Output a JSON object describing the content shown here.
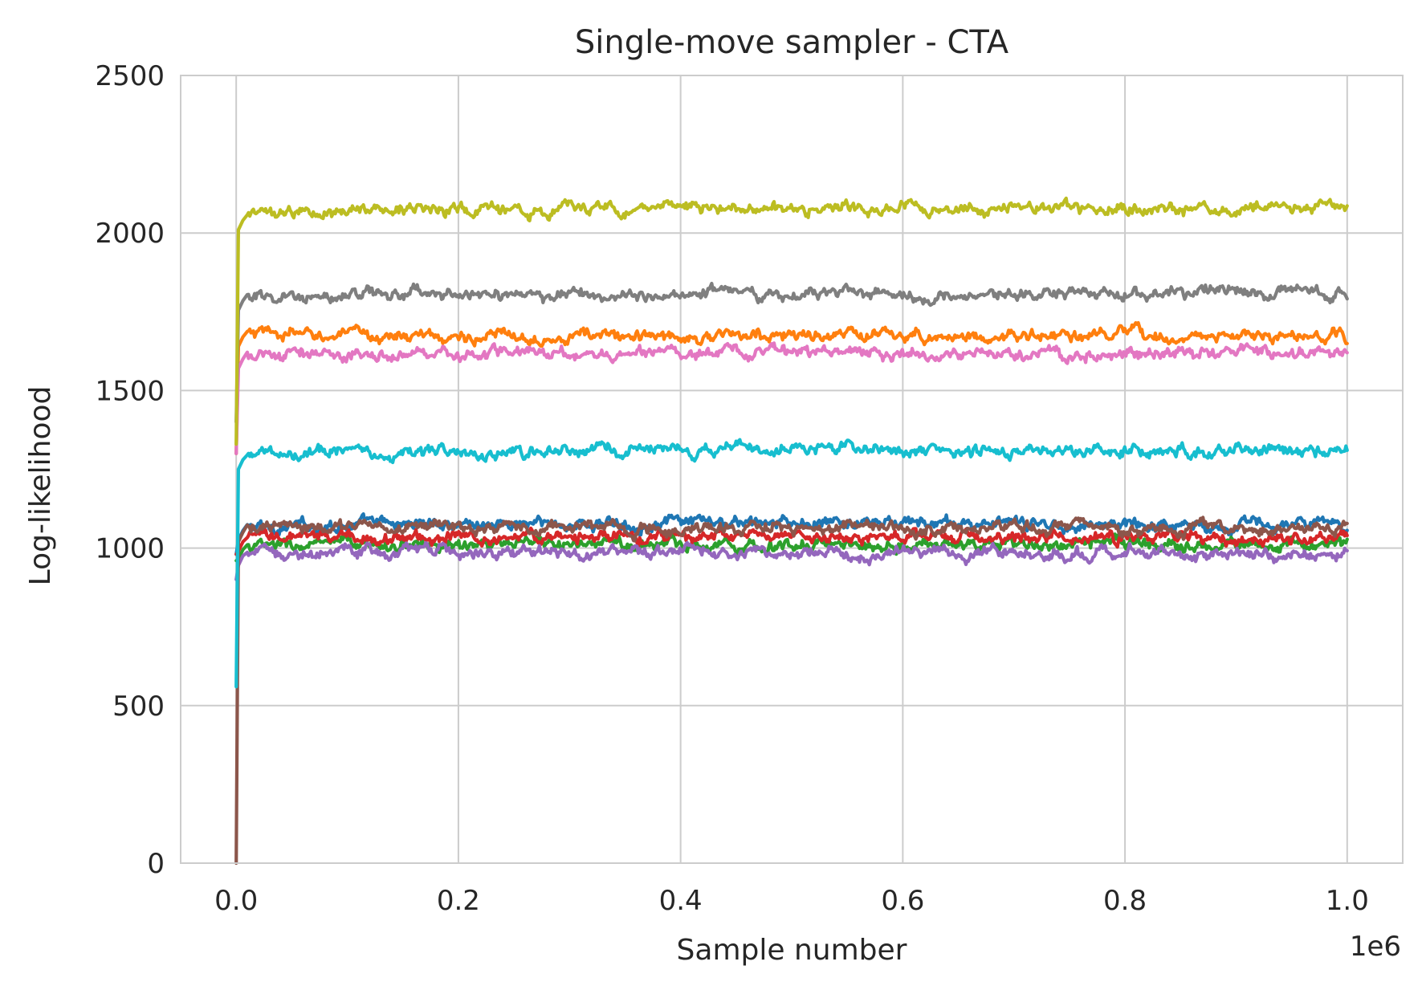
{
  "chart_data": {
    "type": "line",
    "title": "Single-move sampler - CTA",
    "xlabel": "Sample number",
    "ylabel": "Log-likelihood",
    "x_offset_label": "1e6",
    "xlim": [
      -0.05,
      1.05
    ],
    "ylim": [
      0,
      2500
    ],
    "x_ticks": [
      0.0,
      0.2,
      0.4,
      0.6,
      0.8,
      1.0
    ],
    "x_tick_labels": [
      "0.0",
      "0.2",
      "0.4",
      "0.6",
      "0.8",
      "1.0"
    ],
    "y_ticks": [
      0,
      500,
      1000,
      1500,
      2000,
      2500
    ],
    "y_tick_labels": [
      "0",
      "500",
      "1000",
      "1500",
      "2000",
      "2500"
    ],
    "grid": true,
    "series": [
      {
        "color": "#1f77b4",
        "start": 980,
        "x": [
          0.0,
          0.01,
          0.1,
          0.2,
          0.3,
          0.4,
          0.5,
          0.6,
          0.7,
          0.8,
          0.9,
          1.0
        ],
        "values": [
          980,
          1065,
          1075,
          1080,
          1075,
          1080,
          1075,
          1080,
          1075,
          1075,
          1075,
          1070
        ]
      },
      {
        "color": "#ff7f0e",
        "start": 1300,
        "x": [
          0.0,
          0.01,
          0.1,
          0.2,
          0.3,
          0.4,
          0.5,
          0.6,
          0.7,
          0.8,
          0.9,
          1.0
        ],
        "values": [
          1300,
          1680,
          1675,
          1670,
          1675,
          1670,
          1675,
          1675,
          1670,
          1675,
          1670,
          1670
        ]
      },
      {
        "color": "#2ca02c",
        "start": 960,
        "x": [
          0.0,
          0.01,
          0.1,
          0.2,
          0.3,
          0.4,
          0.5,
          0.6,
          0.7,
          0.8,
          0.9,
          1.0
        ],
        "values": [
          960,
          1005,
          1010,
          1010,
          1010,
          1015,
          1010,
          1010,
          1010,
          1010,
          1010,
          1010
        ]
      },
      {
        "color": "#d62728",
        "start": 980,
        "x": [
          0.0,
          0.01,
          0.1,
          0.2,
          0.3,
          0.4,
          0.5,
          0.6,
          0.7,
          0.8,
          0.9,
          1.0
        ],
        "values": [
          980,
          1030,
          1035,
          1035,
          1035,
          1035,
          1035,
          1035,
          1035,
          1035,
          1035,
          1035
        ]
      },
      {
        "color": "#9467bd",
        "start": 900,
        "x": [
          0.0,
          0.01,
          0.1,
          0.2,
          0.3,
          0.4,
          0.5,
          0.6,
          0.7,
          0.8,
          0.9,
          1.0
        ],
        "values": [
          900,
          985,
          985,
          990,
          985,
          990,
          985,
          985,
          985,
          985,
          985,
          985
        ]
      },
      {
        "color": "#8c564b",
        "start": 0,
        "x": [
          0.0,
          0.01,
          0.1,
          0.2,
          0.3,
          0.4,
          0.5,
          0.6,
          0.7,
          0.8,
          0.9,
          1.0
        ],
        "values": [
          0,
          1060,
          1065,
          1065,
          1065,
          1065,
          1065,
          1065,
          1065,
          1065,
          1065,
          1060
        ]
      },
      {
        "color": "#e377c2",
        "start": 1300,
        "x": [
          0.0,
          0.01,
          0.1,
          0.2,
          0.3,
          0.4,
          0.5,
          0.6,
          0.7,
          0.8,
          0.9,
          1.0
        ],
        "values": [
          1300,
          1610,
          1615,
          1615,
          1620,
          1620,
          1625,
          1615,
          1615,
          1620,
          1625,
          1615
        ]
      },
      {
        "color": "#7f7f7f",
        "start": 1400,
        "x": [
          0.0,
          0.01,
          0.1,
          0.2,
          0.3,
          0.4,
          0.5,
          0.6,
          0.7,
          0.8,
          0.9,
          1.0
        ],
        "values": [
          1400,
          1795,
          1805,
          1805,
          1805,
          1810,
          1810,
          1805,
          1805,
          1805,
          1815,
          1805
        ]
      },
      {
        "color": "#bcbd22",
        "start": 1330,
        "x": [
          0.0,
          0.01,
          0.1,
          0.2,
          0.3,
          0.4,
          0.5,
          0.6,
          0.7,
          0.8,
          0.9,
          1.0
        ],
        "values": [
          1330,
          2050,
          2080,
          2075,
          2075,
          2080,
          2075,
          2080,
          2075,
          2080,
          2080,
          2080
        ]
      },
      {
        "color": "#17becf",
        "start": 560,
        "x": [
          0.0,
          0.01,
          0.1,
          0.2,
          0.3,
          0.4,
          0.5,
          0.6,
          0.7,
          0.8,
          0.9,
          1.0
        ],
        "values": [
          560,
          1290,
          1310,
          1305,
          1310,
          1310,
          1315,
          1315,
          1305,
          1310,
          1310,
          1310
        ]
      }
    ]
  }
}
